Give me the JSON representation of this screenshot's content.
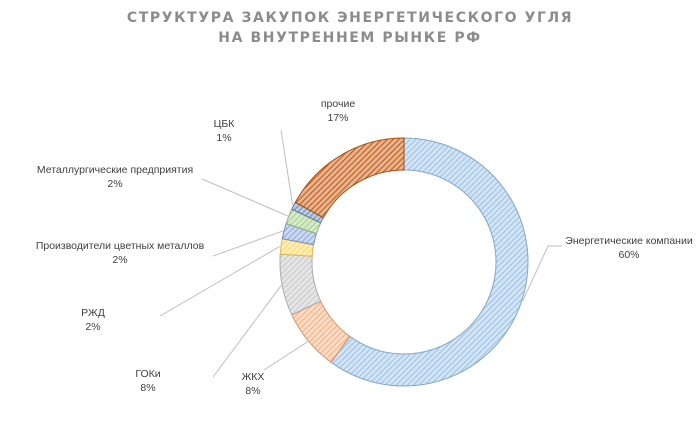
{
  "chart_data": {
    "type": "pie",
    "variant": "donut",
    "title": [
      "СТРУКТУРА ЗАКУПОК ЭНЕРГЕТИЧЕСКОГО УГЛЯ",
      "НА ВНУТРЕННЕМ РЫНКЕ РФ"
    ],
    "slices": [
      {
        "name": "Энергетические компании",
        "value": 60,
        "label": "60%",
        "color": "#9dc3e6"
      },
      {
        "name": "ЖКХ",
        "value": 8,
        "label": "8%",
        "color": "#f4b183"
      },
      {
        "name": "ГОКи",
        "value": 8,
        "label": "8%",
        "color": "#c9c9c9"
      },
      {
        "name": "РЖД",
        "value": 2,
        "label": "2%",
        "color": "#ffd966"
      },
      {
        "name": "Производители цветных металлов",
        "value": 2,
        "label": "2%",
        "color": "#8faadc"
      },
      {
        "name": "Металлургические предприятия",
        "value": 2,
        "label": "2%",
        "color": "#a9d18e"
      },
      {
        "name": "ЦБК",
        "value": 1,
        "label": "1%",
        "color": "#6f8fbf"
      },
      {
        "name": "прочие",
        "value": 17,
        "label": "17%",
        "color": "#c55a11"
      }
    ],
    "legend": "none",
    "fill_pattern": "diagonal-hatch"
  }
}
